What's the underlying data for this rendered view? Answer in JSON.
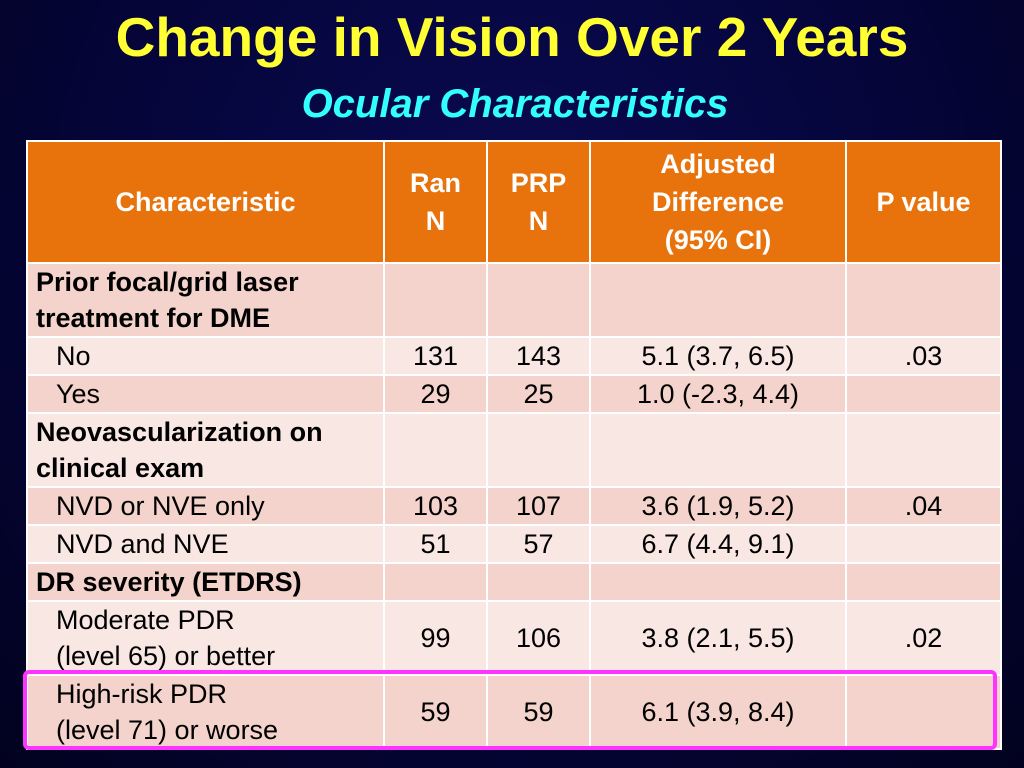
{
  "title": "Change in Vision Over 2 Years",
  "subtitle": "Ocular Characteristics",
  "headers": {
    "characteristic": "Characteristic",
    "ran": [
      "Ran",
      "N"
    ],
    "prp": [
      "PRP",
      "N"
    ],
    "adjusted": [
      "Adjusted",
      "Difference",
      "(95% CI)"
    ],
    "pvalue": "P value"
  },
  "groups": [
    {
      "label": [
        "Prior focal/grid laser",
        "treatment for DME"
      ],
      "rows": [
        {
          "label": [
            "No"
          ],
          "ran": "131",
          "prp": "143",
          "diff": "5.1 (3.7, 6.5)",
          "p": ".03"
        },
        {
          "label": [
            "Yes"
          ],
          "ran": "29",
          "prp": "25",
          "diff": "1.0 (-2.3, 4.4)",
          "p": ""
        }
      ]
    },
    {
      "label": [
        "Neovascularization on",
        "clinical exam"
      ],
      "rows": [
        {
          "label": [
            "NVD or NVE only"
          ],
          "ran": "103",
          "prp": "107",
          "diff": "3.6 (1.9, 5.2)",
          "p": ".04"
        },
        {
          "label": [
            "NVD and NVE"
          ],
          "ran": "51",
          "prp": "57",
          "diff": "6.7 (4.4, 9.1)",
          "p": ""
        }
      ]
    },
    {
      "label": [
        "DR severity (ETDRS)"
      ],
      "rows": [
        {
          "label": [
            "Moderate PDR",
            "(level 65) or better"
          ],
          "ran": "99",
          "prp": "106",
          "diff": "3.8 (2.1, 5.5)",
          "p": ".02"
        },
        {
          "label": [
            "High-risk PDR",
            "(level 71) or worse"
          ],
          "ran": "59",
          "prp": "59",
          "diff": "6.1 (3.9, 8.4)",
          "p": ""
        }
      ]
    }
  ],
  "colors": {
    "title": "#ffff33",
    "subtitle": "#33ffff",
    "header_bg": "#e8730c",
    "row_dark": "#f3d3cb",
    "row_light": "#f9e7e3",
    "highlight": "#ff33ff"
  }
}
